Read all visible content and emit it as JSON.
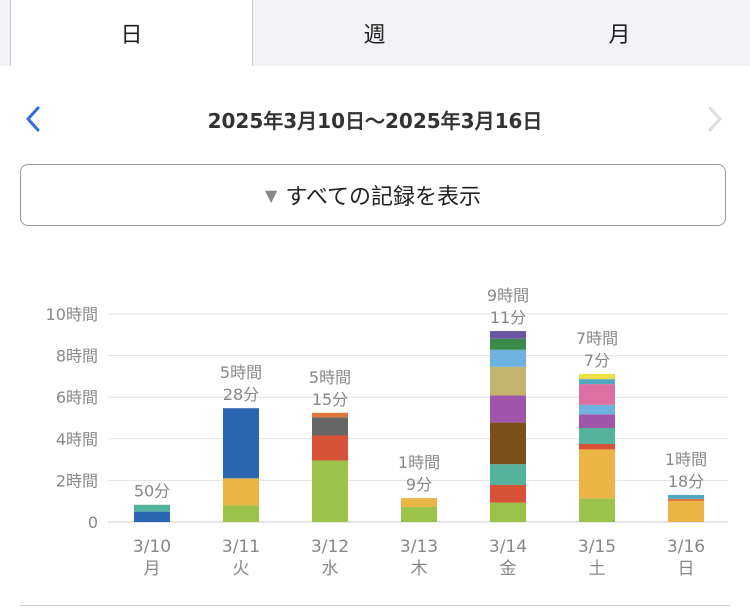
{
  "tabs": [
    {
      "label": "日",
      "active": true
    },
    {
      "label": "週",
      "active": false
    },
    {
      "label": "月",
      "active": false
    }
  ],
  "nav": {
    "prev_icon": "chevron-left-icon",
    "next_icon": "chevron-right-icon",
    "range": "2025年3月10日〜2025年3月16日"
  },
  "filter": {
    "icon": "triangle-down-icon",
    "label": "すべての記録を表示"
  },
  "chart_data": {
    "type": "bar",
    "stacked": true,
    "ylim": [
      0,
      10
    ],
    "yticks": [
      {
        "v": 0,
        "label": "0"
      },
      {
        "v": 2,
        "label": "2時間"
      },
      {
        "v": 4,
        "label": "4時間"
      },
      {
        "v": 6,
        "label": "6時間"
      },
      {
        "v": 8,
        "label": "8時間"
      },
      {
        "v": 10,
        "label": "10時間"
      }
    ],
    "grid": true,
    "categories": [
      {
        "date": "3/10",
        "weekday": "月",
        "total_lines": [
          "50分"
        ],
        "segments": [
          {
            "v": 0.5,
            "color": "#2b66b3"
          },
          {
            "v": 0.33,
            "color": "#55b39b"
          }
        ]
      },
      {
        "date": "3/11",
        "weekday": "火",
        "total_lines": [
          "5時間",
          "28分"
        ],
        "segments": [
          {
            "v": 0.8,
            "color": "#9bc34a"
          },
          {
            "v": 1.3,
            "color": "#eab545"
          },
          {
            "v": 3.37,
            "color": "#2b66b3"
          }
        ]
      },
      {
        "date": "3/12",
        "weekday": "水",
        "total_lines": [
          "5時間",
          "15分"
        ],
        "segments": [
          {
            "v": 2.96,
            "color": "#9bc34a"
          },
          {
            "v": 1.2,
            "color": "#d65135"
          },
          {
            "v": 0.87,
            "color": "#666666"
          },
          {
            "v": 0.22,
            "color": "#e0773b"
          }
        ]
      },
      {
        "date": "3/13",
        "weekday": "木",
        "total_lines": [
          "1時間",
          "9分"
        ],
        "segments": [
          {
            "v": 0.72,
            "color": "#9bc34a"
          },
          {
            "v": 0.43,
            "color": "#eab545"
          }
        ]
      },
      {
        "date": "3/14",
        "weekday": "金",
        "total_lines": [
          "9時間",
          "11分"
        ],
        "segments": [
          {
            "v": 0.93,
            "color": "#9bc34a"
          },
          {
            "v": 0.85,
            "color": "#d65135"
          },
          {
            "v": 1.0,
            "color": "#55b39b"
          },
          {
            "v": 2.0,
            "color": "#7a4f1a"
          },
          {
            "v": 1.3,
            "color": "#9f55a9"
          },
          {
            "v": 1.38,
            "color": "#c3b46d"
          },
          {
            "v": 0.82,
            "color": "#6eb3e0"
          },
          {
            "v": 0.53,
            "color": "#3b8a48"
          },
          {
            "v": 0.37,
            "color": "#6a58a6"
          }
        ]
      },
      {
        "date": "3/15",
        "weekday": "土",
        "total_lines": [
          "7時間",
          "7分"
        ],
        "segments": [
          {
            "v": 1.14,
            "color": "#9bc34a"
          },
          {
            "v": 2.35,
            "color": "#eab545"
          },
          {
            "v": 0.26,
            "color": "#d65135"
          },
          {
            "v": 0.77,
            "color": "#55b39b"
          },
          {
            "v": 0.66,
            "color": "#9f55a9"
          },
          {
            "v": 0.45,
            "color": "#6eb3e0"
          },
          {
            "v": 1.0,
            "color": "#dd6fa2"
          },
          {
            "v": 0.24,
            "color": "#4fa8c0"
          },
          {
            "v": 0.25,
            "color": "#efe04a"
          }
        ]
      },
      {
        "date": "3/16",
        "weekday": "日",
        "total_lines": [
          "1時間",
          "18分"
        ],
        "segments": [
          {
            "v": 1.0,
            "color": "#eab545"
          },
          {
            "v": 0.11,
            "color": "#e0773b"
          },
          {
            "v": 0.19,
            "color": "#4fa8c0"
          }
        ]
      }
    ]
  }
}
